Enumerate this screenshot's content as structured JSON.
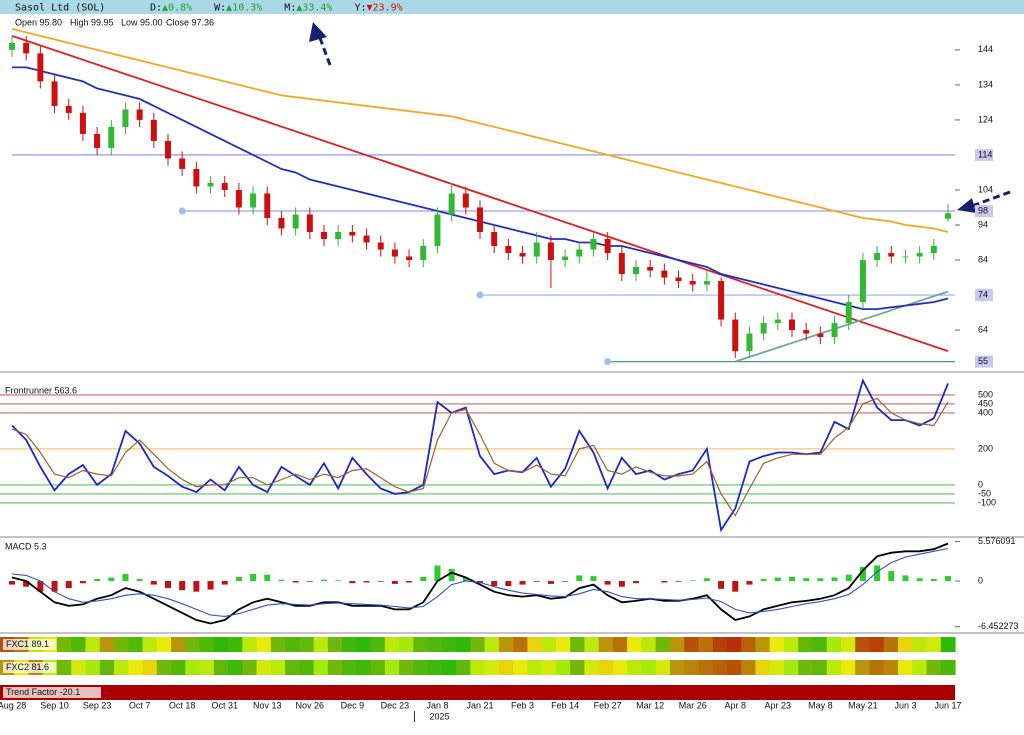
{
  "header": {
    "title": "Sasol Ltd (SOL)",
    "changes": [
      {
        "label": "D:",
        "value": "▲0.8%",
        "color": "#2a9d2a"
      },
      {
        "label": "W:",
        "value": "▲10.3%",
        "color": "#2a9d2a"
      },
      {
        "label": "M:",
        "value": "▲33.4%",
        "color": "#2a9d2a"
      },
      {
        "label": "Y:",
        "value": "▼23.9%",
        "color": "#d01010"
      }
    ]
  },
  "chart_data": [
    {
      "type": "candlestick",
      "ohlc_text": [
        "Open 95.80",
        "High 99.95",
        "Low 95.00",
        "Close 97.36"
      ],
      "year_label": "2025",
      "categories": [
        "Aug 28",
        null,
        null,
        "Sep 10",
        null,
        null,
        "Sep 23",
        null,
        null,
        "Oct 7",
        null,
        null,
        "Oct 18",
        null,
        null,
        "Oct 31",
        null,
        null,
        "Nov 13",
        null,
        null,
        "Nov 26",
        null,
        null,
        "Dec 9",
        null,
        null,
        "Dec 23",
        null,
        null,
        "Jan 8",
        null,
        null,
        "Jan 21",
        null,
        null,
        "Feb 3",
        null,
        null,
        "Feb 14",
        null,
        null,
        "Feb 27",
        null,
        null,
        "Mar 12",
        null,
        null,
        "Mar 26",
        null,
        null,
        "Apr 8",
        null,
        null,
        "Apr 23",
        null,
        null,
        "May 8",
        null,
        null,
        "May 21",
        null,
        null,
        "Jun 3",
        null,
        null,
        "Jun 17"
      ],
      "open": [
        144,
        146,
        143,
        135,
        128,
        126,
        120,
        116,
        122,
        127,
        124,
        118,
        113,
        110,
        105,
        106,
        104,
        99,
        103,
        96,
        93,
        97,
        92,
        90,
        92,
        91,
        89,
        87,
        85,
        84,
        88,
        97,
        103,
        99,
        92,
        88,
        86,
        85,
        89,
        84,
        85,
        87,
        90,
        86,
        80,
        82,
        81,
        79,
        78,
        77,
        78,
        67,
        58,
        63,
        66,
        67,
        64,
        63,
        62,
        66,
        72,
        84,
        86,
        85,
        85,
        86,
        95.8
      ],
      "high": [
        148,
        148,
        145,
        137,
        130,
        128,
        122,
        124,
        129,
        129,
        126,
        120,
        115,
        112,
        108,
        108,
        106,
        105,
        105,
        98,
        99,
        99,
        94,
        94,
        94,
        93,
        91,
        89,
        87,
        90,
        99,
        106,
        105,
        101,
        94,
        90,
        88,
        92,
        91,
        87,
        89,
        92,
        92,
        88,
        84,
        84,
        83,
        81,
        80,
        81,
        79,
        69,
        65,
        68,
        69,
        69,
        66,
        65,
        68,
        74,
        86,
        88,
        88,
        87,
        88,
        90,
        99.95
      ],
      "low": [
        142,
        141,
        133,
        126,
        124,
        118,
        114,
        114,
        120,
        122,
        116,
        111,
        108,
        103,
        103,
        102,
        97,
        97,
        94,
        91,
        91,
        90,
        88,
        88,
        89,
        87,
        85,
        83,
        82,
        82,
        86,
        95,
        97,
        90,
        86,
        84,
        83,
        83,
        76,
        82,
        83,
        85,
        84,
        78,
        78,
        79,
        77,
        76,
        75,
        75,
        65,
        56,
        56,
        61,
        64,
        62,
        61,
        60,
        60,
        64,
        70,
        82,
        83,
        83,
        83,
        84,
        95
      ],
      "close": [
        146,
        143,
        135,
        128,
        126,
        120,
        116,
        122,
        127,
        124,
        118,
        113,
        110,
        105,
        106,
        104,
        99,
        103,
        96,
        93,
        97,
        92,
        90,
        92,
        91,
        89,
        87,
        85,
        84,
        88,
        97,
        103,
        99,
        92,
        88,
        86,
        85,
        89,
        84,
        85,
        87,
        90,
        86,
        80,
        82,
        81,
        79,
        78,
        77,
        78,
        67,
        58,
        63,
        66,
        67,
        64,
        63,
        62,
        66,
        72,
        84,
        86,
        85,
        85,
        86,
        88,
        97.36
      ],
      "up_color": "#33b833",
      "down_color": "#cc1010",
      "ylim": [
        52.6,
        153.1
      ],
      "yticks": [
        144,
        134,
        124,
        104,
        94,
        84,
        64
      ],
      "series": [
        {
          "color": "#f5a623",
          "values": [
            150,
            149,
            148,
            147,
            146,
            145,
            144,
            143,
            142,
            141,
            140,
            139,
            138,
            137,
            136,
            135,
            134,
            133,
            132,
            131,
            130.5,
            130,
            129.5,
            129,
            128.5,
            128,
            127.5,
            127,
            126.5,
            126,
            125.5,
            125,
            124,
            123,
            122,
            121,
            120,
            119,
            118,
            117,
            116,
            115,
            114,
            113,
            112,
            111,
            110,
            109,
            108,
            107,
            106,
            105,
            104,
            103,
            102,
            101,
            100,
            99,
            98,
            97,
            96,
            95.5,
            95,
            94,
            93.5,
            93,
            92
          ]
        },
        {
          "color": "#2030c0",
          "values": [
            139,
            139,
            138,
            137,
            136,
            135,
            133,
            132,
            131,
            130,
            128,
            126,
            124,
            122,
            120,
            118,
            116,
            114,
            112,
            110,
            109,
            107,
            106,
            105,
            104,
            103,
            102,
            101,
            100,
            99,
            98,
            97,
            96,
            95,
            94,
            93,
            92,
            91,
            90,
            90,
            89,
            89,
            88,
            88,
            87,
            86,
            85,
            84,
            83,
            82,
            80,
            79,
            78,
            77,
            76,
            75,
            74,
            73,
            72,
            71,
            70,
            70,
            70.5,
            71,
            71.5,
            72,
            73
          ]
        }
      ],
      "levels": [
        {
          "value": 114,
          "from": "Aug 28",
          "color": "#8a8ae0"
        },
        {
          "value": 98,
          "from": "Oct 18",
          "color": "#a0a0e8"
        },
        {
          "value": 74,
          "from": "Jan 21",
          "color": "#8fb0f0"
        },
        {
          "value": 55,
          "from": "Feb 27",
          "color": "#4a9a80"
        }
      ],
      "trendlines": [
        {
          "from": "Aug 28",
          "to": "Jun 17",
          "values": [
            148,
            58
          ],
          "color": "#e02020"
        },
        {
          "from": "Apr 8",
          "to": "Jun 17",
          "values": [
            55,
            75
          ],
          "color": "#70a890"
        }
      ]
    },
    {
      "type": "line",
      "title": "Frontrunner 563.6",
      "ylim": [
        -278,
        594
      ],
      "yticks": [
        500,
        450,
        400,
        200,
        0,
        -50,
        -100
      ],
      "grid_colors": [
        "#b04040",
        "#b04040",
        "#b04040",
        "#f0b030",
        "#30b030",
        "#30b030",
        "#30b030"
      ],
      "series": [
        {
          "color": "#1a28c8",
          "values": [
            330,
            250,
            100,
            -30,
            60,
            110,
            0,
            60,
            300,
            230,
            100,
            50,
            -10,
            -40,
            30,
            -30,
            100,
            0,
            -40,
            100,
            50,
            0,
            120,
            -20,
            150,
            60,
            -20,
            -50,
            -40,
            0,
            460,
            400,
            430,
            160,
            60,
            80,
            70,
            150,
            -10,
            90,
            300,
            180,
            -20,
            150,
            60,
            80,
            30,
            60,
            80,
            200,
            -250,
            -130,
            130,
            160,
            180,
            180,
            170,
            180,
            350,
            310,
            580,
            430,
            360,
            360,
            330,
            370,
            563.6
          ]
        },
        {
          "color": "#a06030",
          "values": [
            310,
            280,
            180,
            60,
            40,
            80,
            60,
            50,
            180,
            250,
            170,
            90,
            30,
            -10,
            0,
            0,
            40,
            40,
            0,
            30,
            60,
            30,
            60,
            40,
            80,
            90,
            40,
            -10,
            -40,
            -20,
            250,
            400,
            420,
            280,
            120,
            80,
            70,
            110,
            60,
            50,
            200,
            220,
            80,
            60,
            100,
            70,
            50,
            50,
            60,
            130,
            -50,
            -170,
            -20,
            120,
            150,
            170,
            170,
            170,
            260,
            320,
            450,
            480,
            400,
            360,
            340,
            330,
            460
          ]
        }
      ]
    },
    {
      "type": "macd",
      "title": "MACD 5.3",
      "ylim": [
        -7.2,
        5.8
      ],
      "yticks": [
        5.576091,
        0,
        -6.452273
      ],
      "series": [
        {
          "color": "#000000",
          "values": [
            0.5,
            0,
            -1.5,
            -3,
            -3.5,
            -3.3,
            -2.5,
            -2,
            -1,
            -1.5,
            -2.5,
            -3.5,
            -4.5,
            -5.5,
            -6,
            -5.5,
            -4,
            -3,
            -2.5,
            -3,
            -3.5,
            -3.5,
            -3,
            -3,
            -3.5,
            -3.5,
            -3.5,
            -4,
            -4,
            -3,
            0,
            1.2,
            0.5,
            -0.5,
            -1.5,
            -2,
            -2.2,
            -2,
            -2.5,
            -2.3,
            -1,
            -0.5,
            -2,
            -3,
            -2.8,
            -2.5,
            -2.8,
            -2.8,
            -2.5,
            -2,
            -4,
            -5.5,
            -5,
            -4,
            -3.5,
            -3,
            -2.8,
            -2.5,
            -2,
            -1,
            1.5,
            3.5,
            4,
            4.2,
            4.2,
            4.5,
            5.3
          ]
        },
        {
          "color": "#3050d0",
          "values": [
            1,
            0.8,
            0,
            -1.5,
            -2.5,
            -3,
            -2.8,
            -2.5,
            -2,
            -1.8,
            -2,
            -2.5,
            -3.2,
            -4,
            -4.8,
            -5,
            -4.6,
            -4,
            -3.4,
            -3.2,
            -3.3,
            -3.4,
            -3.2,
            -3.1,
            -3.2,
            -3.3,
            -3.4,
            -3.6,
            -3.8,
            -3.6,
            -2.2,
            -0.5,
            0,
            -0.2,
            -0.8,
            -1.3,
            -1.7,
            -1.9,
            -2.1,
            -2.2,
            -1.8,
            -1.2,
            -1.5,
            -2.2,
            -2.5,
            -2.5,
            -2.6,
            -2.7,
            -2.6,
            -2.4,
            -2.9,
            -4,
            -4.5,
            -4.3,
            -4,
            -3.6,
            -3.2,
            -2.9,
            -2.5,
            -1.9,
            -0.5,
            1.3,
            2.6,
            3.4,
            3.8,
            4.2,
            4.6
          ]
        }
      ],
      "histogram": {
        "up_color": "#2ecc2e",
        "down_color": "#c01010",
        "values": [
          -0.5,
          -0.8,
          -1.5,
          -1.5,
          -1,
          -0.3,
          0.3,
          0.5,
          1,
          0.3,
          -0.5,
          -1,
          -1.3,
          -1.5,
          -1.2,
          -0.5,
          0.6,
          1,
          0.9,
          0.2,
          -0.2,
          -0.1,
          0.2,
          0.1,
          -0.3,
          -0.2,
          -0.1,
          -0.4,
          -0.2,
          0.6,
          2.2,
          1.7,
          0.5,
          -0.3,
          -0.7,
          -0.7,
          -0.5,
          -0.1,
          -0.4,
          -0.1,
          0.8,
          0.7,
          -0.5,
          -0.8,
          -0.3,
          0,
          -0.2,
          -0.1,
          0.1,
          0.4,
          -1.1,
          -1.5,
          -0.5,
          0.3,
          0.5,
          0.6,
          0.4,
          0.4,
          0.5,
          0.9,
          2,
          2.2,
          1.4,
          0.8,
          0.4,
          0.3,
          0.7
        ]
      }
    },
    {
      "type": "heatstrip",
      "strips": [
        {
          "label": "FXC1 89.1",
          "values": [
            20,
            30,
            60,
            50,
            70,
            80,
            60,
            40,
            70,
            80,
            60,
            50,
            40,
            70,
            80,
            90,
            85,
            60,
            50,
            70,
            80,
            75,
            60,
            70,
            85,
            90,
            80,
            60,
            65,
            75,
            80,
            85,
            90,
            70,
            60,
            40,
            30,
            45,
            60,
            50,
            70,
            60,
            40,
            30,
            50,
            60,
            70,
            40,
            20,
            30,
            15,
            10,
            25,
            40,
            50,
            60,
            75,
            80,
            65,
            55,
            20,
            15,
            30,
            45,
            60,
            55,
            89.1
          ]
        },
        {
          "label": "FXC2 81.6",
          "values": [
            40,
            50,
            35,
            60,
            70,
            55,
            65,
            75,
            60,
            50,
            45,
            70,
            80,
            65,
            60,
            75,
            85,
            70,
            55,
            60,
            75,
            80,
            65,
            70,
            80,
            85,
            75,
            65,
            70,
            80,
            85,
            90,
            75,
            60,
            55,
            45,
            50,
            60,
            55,
            65,
            70,
            55,
            45,
            50,
            60,
            65,
            55,
            40,
            35,
            30,
            25,
            20,
            35,
            45,
            55,
            65,
            70,
            75,
            60,
            50,
            40,
            30,
            35,
            50,
            60,
            70,
            81.6
          ]
        },
        {
          "label": "Trend Factor -20.1",
          "color": "#aa0000"
        }
      ]
    }
  ]
}
